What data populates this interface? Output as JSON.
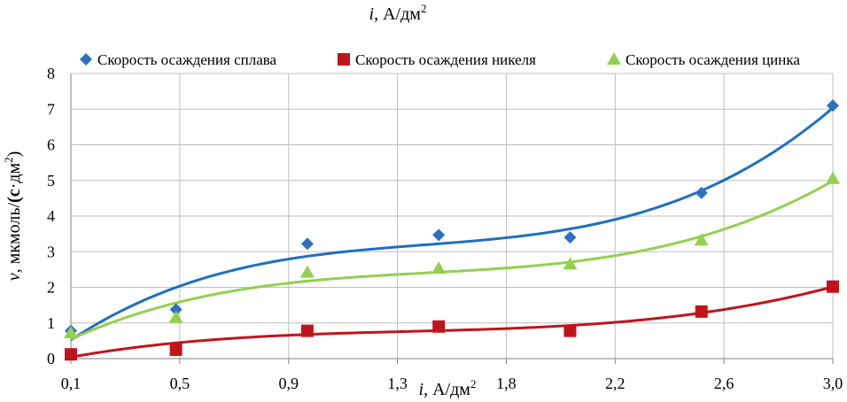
{
  "chart_data": {
    "type": "scatter",
    "title": "i, А/дм²",
    "xlabel": "i, А/дм²",
    "ylabel": "v, мкмоль/(с·дм²)",
    "xlim": [
      0.1,
      3.0
    ],
    "ylim": [
      0,
      8
    ],
    "x_ticks": [
      "0,1",
      "0,5",
      "0,9",
      "1,3",
      "1,8",
      "2,2",
      "2,6",
      "3,0"
    ],
    "y_ticks": [
      "0",
      "1",
      "2",
      "3",
      "4",
      "5",
      "6",
      "7",
      "8"
    ],
    "grid": true,
    "legend_position": "top",
    "x": [
      0.1,
      0.5,
      1.0,
      1.5,
      2.0,
      2.5,
      3.0
    ],
    "series": [
      {
        "name": "Скорость осаждения сплава",
        "marker": "diamond",
        "color": "#2E6FC0",
        "trend_color": "#1F6FBF",
        "values": [
          0.78,
          1.38,
          3.22,
          3.47,
          3.4,
          4.65,
          7.1
        ]
      },
      {
        "name": "Скорость осаждения никеля",
        "marker": "square",
        "color": "#C0141C",
        "trend_color": "#C0141C",
        "values": [
          0.12,
          0.25,
          0.78,
          0.9,
          0.78,
          1.32,
          2.02
        ]
      },
      {
        "name": "Скорость осаждения цинка",
        "marker": "triangle",
        "color": "#92D050",
        "trend_color": "#92D050",
        "values": [
          0.72,
          1.15,
          2.42,
          2.53,
          2.65,
          3.32,
          5.05
        ]
      }
    ]
  }
}
